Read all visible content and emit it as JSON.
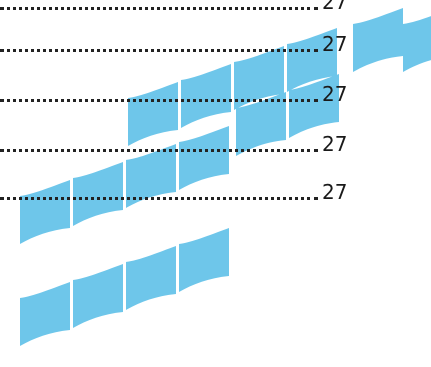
{
  "toc": {
    "entries": [
      {
        "page": "27"
      },
      {
        "page": "27"
      },
      {
        "page": "27"
      },
      {
        "page": "27"
      },
      {
        "page": "27"
      }
    ]
  },
  "decoration": {
    "shape": "wave-tiles",
    "color": "#6ec6ea"
  }
}
